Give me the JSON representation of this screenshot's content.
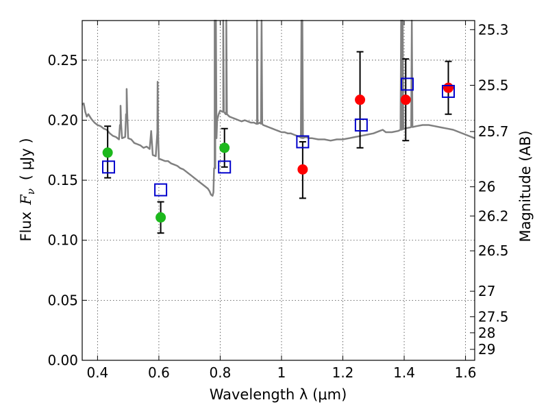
{
  "chart_data": {
    "type": "scatter",
    "xlabel": "Wavelength  λ (μm)",
    "ylabel": "Flux  F_ν  ( μJy )",
    "ylabel_parts": {
      "prefix": "Flux",
      "var": "F",
      "sub": "ν",
      "unit": "( μJy )"
    },
    "y2label": "Magnitude (AB)",
    "xlim": [
      0.35,
      1.63
    ],
    "ylim": [
      0.0,
      0.283
    ],
    "grid": true,
    "x_ticks": [
      0.4,
      0.6,
      0.8,
      1.0,
      1.2,
      1.4,
      1.6
    ],
    "x_tick_labels": [
      "0.4",
      "0.6",
      "0.8",
      "1",
      "1.2",
      "1.4",
      "1.6"
    ],
    "y_ticks": [
      0.0,
      0.05,
      0.1,
      0.15,
      0.2,
      0.25
    ],
    "y_tick_labels": [
      "0.00",
      "0.05",
      "0.10",
      "0.15",
      "0.20",
      "0.25"
    ],
    "mag_ticks": [
      25.3,
      25.5,
      25.7,
      26,
      26.2,
      26.5,
      27,
      27.5,
      28,
      29
    ],
    "mag_tick_labels": [
      "25.3",
      "25.5",
      "25.7",
      "26",
      "26.2",
      "26.5",
      "27",
      "27.5",
      "28",
      "29"
    ],
    "colors": {
      "model": "#808080",
      "observed_green": "#1cb81c",
      "observed_red": "#ff0000",
      "model_flux_marker": "#0000cc",
      "errorbar": "#000000"
    },
    "model_spectrum": [
      [
        0.35,
        0.213
      ],
      [
        0.355,
        0.214
      ],
      [
        0.36,
        0.207
      ],
      [
        0.365,
        0.203
      ],
      [
        0.37,
        0.205
      ],
      [
        0.38,
        0.201
      ],
      [
        0.39,
        0.198
      ],
      [
        0.4,
        0.196
      ],
      [
        0.41,
        0.195
      ],
      [
        0.42,
        0.193
      ],
      [
        0.43,
        0.192
      ],
      [
        0.44,
        0.189
      ],
      [
        0.45,
        0.187
      ],
      [
        0.46,
        0.186
      ],
      [
        0.47,
        0.184
      ],
      [
        0.475,
        0.196
      ],
      [
        0.48,
        0.185
      ],
      [
        0.49,
        0.186
      ],
      [
        0.495,
        0.205
      ],
      [
        0.5,
        0.185
      ],
      [
        0.51,
        0.184
      ],
      [
        0.52,
        0.181
      ],
      [
        0.53,
        0.18
      ],
      [
        0.54,
        0.179
      ],
      [
        0.55,
        0.177
      ],
      [
        0.56,
        0.178
      ],
      [
        0.57,
        0.176
      ],
      [
        0.575,
        0.191
      ],
      [
        0.58,
        0.171
      ],
      [
        0.59,
        0.17
      ],
      [
        0.595,
        0.19
      ],
      [
        0.6,
        0.168
      ],
      [
        0.61,
        0.167
      ],
      [
        0.62,
        0.166
      ],
      [
        0.63,
        0.166
      ],
      [
        0.64,
        0.164
      ],
      [
        0.65,
        0.163
      ],
      [
        0.66,
        0.162
      ],
      [
        0.67,
        0.16
      ],
      [
        0.68,
        0.159
      ],
      [
        0.69,
        0.157
      ],
      [
        0.7,
        0.155
      ],
      [
        0.71,
        0.153
      ],
      [
        0.72,
        0.151
      ],
      [
        0.73,
        0.149
      ],
      [
        0.74,
        0.147
      ],
      [
        0.75,
        0.145
      ],
      [
        0.76,
        0.143
      ],
      [
        0.765,
        0.141
      ],
      [
        0.77,
        0.138
      ],
      [
        0.775,
        0.137
      ],
      [
        0.778,
        0.14
      ],
      [
        0.782,
        0.16
      ],
      [
        0.786,
        0.185
      ],
      [
        0.79,
        0.2
      ],
      [
        0.795,
        0.205
      ],
      [
        0.8,
        0.208
      ],
      [
        0.81,
        0.207
      ],
      [
        0.82,
        0.205
      ],
      [
        0.83,
        0.203
      ],
      [
        0.84,
        0.202
      ],
      [
        0.85,
        0.201
      ],
      [
        0.86,
        0.2
      ],
      [
        0.87,
        0.199
      ],
      [
        0.88,
        0.2
      ],
      [
        0.89,
        0.199
      ],
      [
        0.9,
        0.198
      ],
      [
        0.91,
        0.198
      ],
      [
        0.92,
        0.197
      ],
      [
        0.93,
        0.198
      ],
      [
        0.94,
        0.196
      ],
      [
        0.95,
        0.195
      ],
      [
        0.96,
        0.194
      ],
      [
        0.97,
        0.193
      ],
      [
        0.98,
        0.192
      ],
      [
        0.99,
        0.191
      ],
      [
        1.0,
        0.19
      ],
      [
        1.01,
        0.19
      ],
      [
        1.02,
        0.189
      ],
      [
        1.03,
        0.189
      ],
      [
        1.04,
        0.188
      ],
      [
        1.05,
        0.187
      ],
      [
        1.06,
        0.186
      ],
      [
        1.07,
        0.185
      ],
      [
        1.08,
        0.186
      ],
      [
        1.09,
        0.185
      ],
      [
        1.1,
        0.185
      ],
      [
        1.12,
        0.184
      ],
      [
        1.14,
        0.184
      ],
      [
        1.16,
        0.183
      ],
      [
        1.18,
        0.184
      ],
      [
        1.2,
        0.184
      ],
      [
        1.22,
        0.185
      ],
      [
        1.24,
        0.186
      ],
      [
        1.26,
        0.187
      ],
      [
        1.28,
        0.188
      ],
      [
        1.3,
        0.189
      ],
      [
        1.32,
        0.191
      ],
      [
        1.33,
        0.192
      ],
      [
        1.34,
        0.19
      ],
      [
        1.36,
        0.19
      ],
      [
        1.38,
        0.191
      ],
      [
        1.4,
        0.193
      ],
      [
        1.42,
        0.194
      ],
      [
        1.44,
        0.195
      ],
      [
        1.46,
        0.196
      ],
      [
        1.48,
        0.196
      ],
      [
        1.5,
        0.195
      ],
      [
        1.52,
        0.194
      ],
      [
        1.54,
        0.193
      ],
      [
        1.56,
        0.192
      ],
      [
        1.58,
        0.19
      ],
      [
        1.6,
        0.188
      ],
      [
        1.62,
        0.186
      ],
      [
        1.63,
        0.185
      ]
    ],
    "emission_lines": [
      [
        0.475,
        0.212
      ],
      [
        0.495,
        0.226
      ],
      [
        0.596,
        0.232
      ],
      [
        0.782,
        0.283
      ],
      [
        0.786,
        0.283
      ],
      [
        0.81,
        0.283
      ],
      [
        0.82,
        0.283
      ],
      [
        0.92,
        0.283
      ],
      [
        0.935,
        0.283
      ],
      [
        1.065,
        0.283
      ],
      [
        1.068,
        0.283
      ],
      [
        1.39,
        0.283
      ],
      [
        1.395,
        0.283
      ],
      [
        1.425,
        0.283
      ]
    ],
    "observed": [
      {
        "x": 0.433,
        "y": 0.173,
        "yerr_low": 0.021,
        "yerr_high": 0.022,
        "color": "green"
      },
      {
        "x": 0.606,
        "y": 0.119,
        "yerr_low": 0.013,
        "yerr_high": 0.013,
        "color": "green"
      },
      {
        "x": 0.814,
        "y": 0.177,
        "yerr_low": 0.016,
        "yerr_high": 0.016,
        "color": "green"
      },
      {
        "x": 1.069,
        "y": 0.159,
        "yerr_low": 0.024,
        "yerr_high": 0.023,
        "color": "red"
      },
      {
        "x": 1.256,
        "y": 0.217,
        "yerr_low": 0.04,
        "yerr_high": 0.04,
        "color": "red"
      },
      {
        "x": 1.405,
        "y": 0.217,
        "yerr_low": 0.034,
        "yerr_high": 0.034,
        "color": "red"
      },
      {
        "x": 1.544,
        "y": 0.227,
        "yerr_low": 0.022,
        "yerr_high": 0.022,
        "color": "red"
      }
    ],
    "model_flux": [
      {
        "x": 0.436,
        "y": 0.161
      },
      {
        "x": 0.606,
        "y": 0.142
      },
      {
        "x": 0.814,
        "y": 0.161
      },
      {
        "x": 1.069,
        "y": 0.182
      },
      {
        "x": 1.26,
        "y": 0.196
      },
      {
        "x": 1.41,
        "y": 0.23
      },
      {
        "x": 1.544,
        "y": 0.224
      }
    ]
  }
}
